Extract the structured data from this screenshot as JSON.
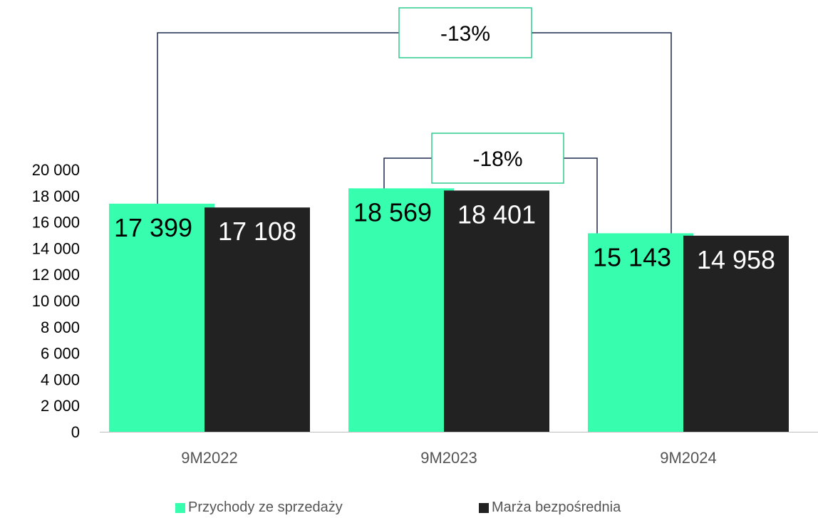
{
  "chart_data": {
    "type": "bar",
    "categories": [
      "9M2022",
      "9M2023",
      "9M2024"
    ],
    "series": [
      {
        "name": "Przychody ze sprzedaży",
        "color": "#36FEAE",
        "values": [
          17399,
          18569,
          15143
        ],
        "labels": [
          "17 399",
          "18 569",
          "15 143"
        ]
      },
      {
        "name": "Marża bezpośrednia",
        "color": "#222222",
        "values": [
          17108,
          18401,
          14958
        ],
        "labels": [
          "17 108",
          "18 401",
          "14 958"
        ]
      }
    ],
    "yticks": [
      "0",
      "2 000",
      "4 000",
      "6 000",
      "8 000",
      "10 000",
      "12 000",
      "14 000",
      "16 000",
      "18 000",
      "20 000"
    ],
    "ylim": [
      0,
      20000
    ],
    "grid": false,
    "legend_position": "bottom",
    "annotations": [
      {
        "text": "-13%",
        "from": "9M2022",
        "to": "9M2024"
      },
      {
        "text": "-18%",
        "from": "9M2023",
        "to": "9M2024"
      }
    ],
    "connector_color": "#1f2a4d",
    "annotation_border_color": "#2ecc8f"
  }
}
